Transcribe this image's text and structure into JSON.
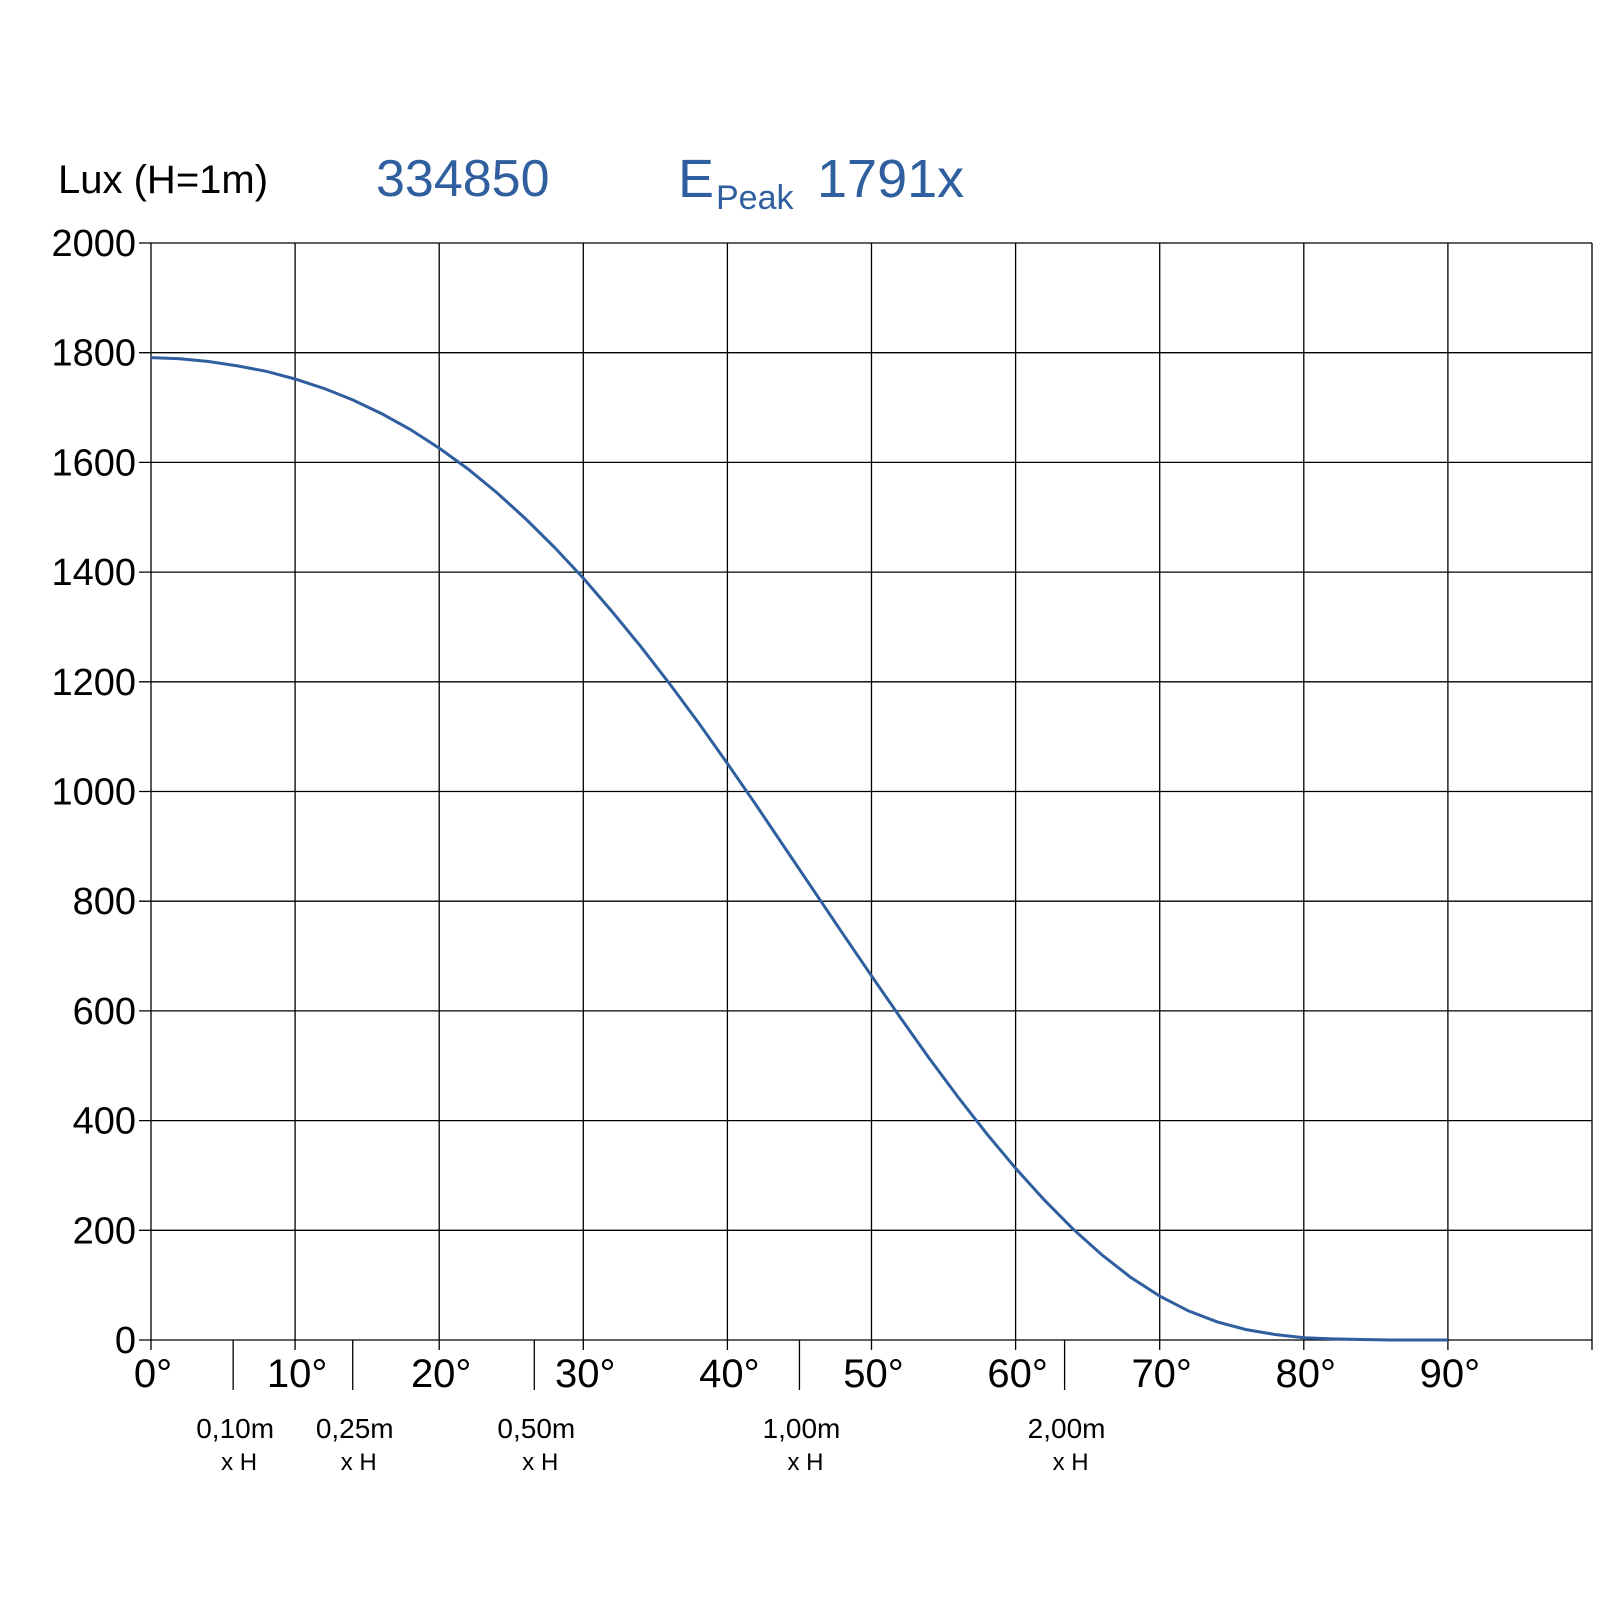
{
  "header": {
    "unit_label": "Lux (H=1m)",
    "product_code": "334850",
    "peak_symbol": "E",
    "peak_subscript": "Peak",
    "peak_value": "1791x"
  },
  "colors": {
    "accent": "#2f5f9e",
    "grid": "#000000",
    "text": "#000000"
  },
  "chart_data": {
    "type": "line",
    "title": "",
    "xlabel": "",
    "ylabel": "Lux (H=1m)",
    "xlim": [
      0,
      100
    ],
    "ylim": [
      0,
      2000
    ],
    "x_ticks": [
      0,
      10,
      20,
      30,
      40,
      50,
      60,
      70,
      80,
      90
    ],
    "x_tick_labels": [
      "0°",
      "10°",
      "20°",
      "30°",
      "40°",
      "50°",
      "60°",
      "70°",
      "80°",
      "90°"
    ],
    "y_ticks": [
      0,
      200,
      400,
      600,
      800,
      1000,
      1200,
      1400,
      1600,
      1800,
      2000
    ],
    "y_tick_labels": [
      "0",
      "200",
      "400",
      "600",
      "800",
      "1000",
      "1200",
      "1400",
      "1600",
      "1800",
      "2000"
    ],
    "grid": true,
    "series": [
      {
        "name": "",
        "x": [
          0,
          2,
          4,
          6,
          8,
          10,
          12,
          14,
          16,
          18,
          20,
          22,
          24,
          26,
          28,
          30,
          32,
          34,
          36,
          38,
          40,
          42,
          44,
          46,
          48,
          50,
          52,
          54,
          56,
          58,
          60,
          62,
          64,
          66,
          68,
          70,
          72,
          74,
          76,
          78,
          80,
          82,
          84,
          86,
          88,
          90
        ],
        "y": [
          1791,
          1789,
          1784,
          1776,
          1766,
          1752,
          1735,
          1714,
          1689,
          1660,
          1626,
          1588,
          1545,
          1497,
          1445,
          1389,
          1328,
          1264,
          1196,
          1125,
          1051,
          975,
          897,
          819,
          741,
          664,
          588,
          514,
          443,
          376,
          313,
          255,
          202,
          155,
          114,
          80,
          53,
          33,
          19,
          10,
          4,
          2,
          1,
          0,
          0,
          0
        ]
      }
    ],
    "secondary_ticks": [
      {
        "x": 5.7,
        "line1": "0,10m",
        "line2": "x H"
      },
      {
        "x": 14.0,
        "line1": "0,25m",
        "line2": "x H"
      },
      {
        "x": 26.6,
        "line1": "0,50m",
        "line2": "x H"
      },
      {
        "x": 45.0,
        "line1": "1,00m",
        "line2": "x H"
      },
      {
        "x": 63.4,
        "line1": "2,00m",
        "line2": "x H"
      }
    ]
  }
}
